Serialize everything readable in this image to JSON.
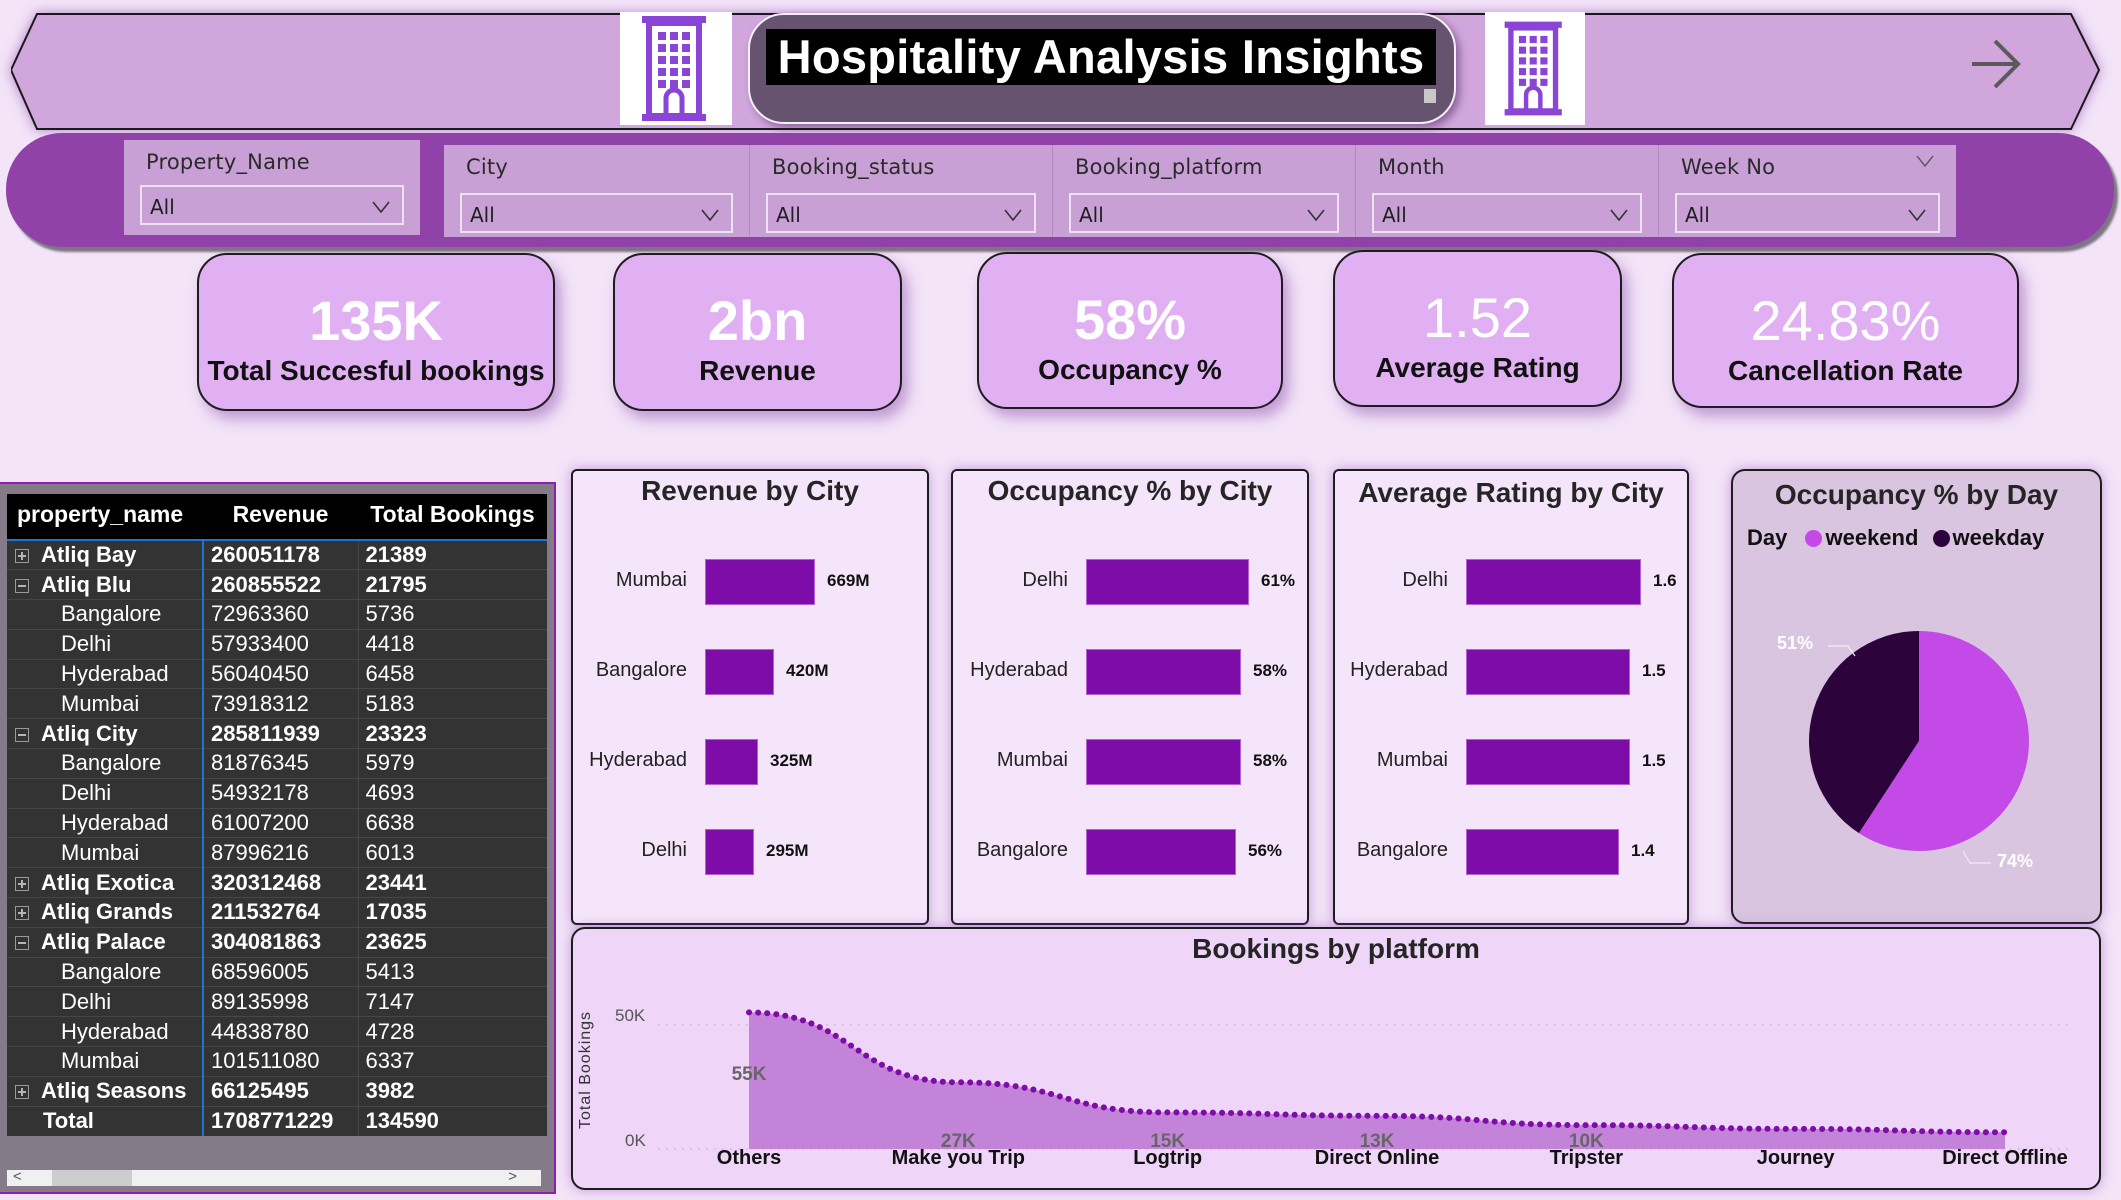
{
  "header": {
    "title": "Hospitality Analysis Insights",
    "left_icon": "hotel-building-icon",
    "right_icon": "hotel-building-icon",
    "nav_icon": "arrow-right-icon"
  },
  "slicers": [
    {
      "label": "Property_Name",
      "value": "All"
    },
    {
      "label": "City",
      "value": "All"
    },
    {
      "label": "Booking_status",
      "value": "All"
    },
    {
      "label": "Booking_platform",
      "value": "All"
    },
    {
      "label": "Month",
      "value": "All"
    },
    {
      "label": "Week No",
      "value": "All"
    }
  ],
  "kpis": [
    {
      "value": "135K",
      "label": "Total Succesful bookings"
    },
    {
      "value": "2bn",
      "label": "Revenue"
    },
    {
      "value": "58%",
      "label": "Occupancy %"
    },
    {
      "value": "1.52",
      "label": "Average Rating"
    },
    {
      "value": "24.83%",
      "label": "Cancellation Rate"
    }
  ],
  "matrix": {
    "columns": [
      "property_name",
      "Revenue",
      "Total Bookings"
    ],
    "rows": [
      {
        "name": "Atliq Bay",
        "revenue": "260051178",
        "bookings": "21389",
        "level": "parent",
        "state": "collapsed"
      },
      {
        "name": "Atliq Blu",
        "revenue": "260855522",
        "bookings": "21795",
        "level": "parent",
        "state": "expanded"
      },
      {
        "name": "Bangalore",
        "revenue": "72963360",
        "bookings": "5736",
        "level": "child"
      },
      {
        "name": "Delhi",
        "revenue": "57933400",
        "bookings": "4418",
        "level": "child"
      },
      {
        "name": "Hyderabad",
        "revenue": "56040450",
        "bookings": "6458",
        "level": "child"
      },
      {
        "name": "Mumbai",
        "revenue": "73918312",
        "bookings": "5183",
        "level": "child"
      },
      {
        "name": "Atliq City",
        "revenue": "285811939",
        "bookings": "23323",
        "level": "parent",
        "state": "expanded"
      },
      {
        "name": "Bangalore",
        "revenue": "81876345",
        "bookings": "5979",
        "level": "child"
      },
      {
        "name": "Delhi",
        "revenue": "54932178",
        "bookings": "4693",
        "level": "child"
      },
      {
        "name": "Hyderabad",
        "revenue": "61007200",
        "bookings": "6638",
        "level": "child"
      },
      {
        "name": "Mumbai",
        "revenue": "87996216",
        "bookings": "6013",
        "level": "child"
      },
      {
        "name": "Atliq Exotica",
        "revenue": "320312468",
        "bookings": "23441",
        "level": "parent",
        "state": "collapsed"
      },
      {
        "name": "Atliq Grands",
        "revenue": "211532764",
        "bookings": "17035",
        "level": "parent",
        "state": "collapsed"
      },
      {
        "name": "Atliq Palace",
        "revenue": "304081863",
        "bookings": "23625",
        "level": "parent",
        "state": "expanded"
      },
      {
        "name": "Bangalore",
        "revenue": "68596005",
        "bookings": "5413",
        "level": "child"
      },
      {
        "name": "Delhi",
        "revenue": "89135998",
        "bookings": "7147",
        "level": "child"
      },
      {
        "name": "Hyderabad",
        "revenue": "44838780",
        "bookings": "4728",
        "level": "child"
      },
      {
        "name": "Mumbai",
        "revenue": "101511080",
        "bookings": "6337",
        "level": "child"
      },
      {
        "name": "Atliq Seasons",
        "revenue": "66125495",
        "bookings": "3982",
        "level": "parent",
        "state": "collapsed"
      }
    ],
    "total": {
      "name": "Total",
      "revenue": "1708771229",
      "bookings": "134590"
    },
    "scroll_left": "<",
    "scroll_right": ">"
  },
  "colors": {
    "bar": "#7e0ca8",
    "weekend": "#c34ae6",
    "weekday": "#2d033b",
    "area_fill": "#c383d8",
    "area_line": "#7e0ca8",
    "background": "#f3e4f8",
    "slicer_bar": "#9042a8"
  },
  "chart_data": [
    {
      "type": "bar",
      "orientation": "horizontal",
      "title": "Revenue by City",
      "categories": [
        "Mumbai",
        "Bangalore",
        "Hyderabad",
        "Delhi"
      ],
      "values": [
        669,
        420,
        325,
        295
      ],
      "value_labels": [
        "669M",
        "420M",
        "325M",
        "295M"
      ],
      "unit": "M"
    },
    {
      "type": "bar",
      "orientation": "horizontal",
      "title": "Occupancy % by City",
      "categories": [
        "Delhi",
        "Hyderabad",
        "Mumbai",
        "Bangalore"
      ],
      "values": [
        61,
        58,
        58,
        56
      ],
      "value_labels": [
        "61%",
        "58%",
        "58%",
        "56%"
      ],
      "unit": "%"
    },
    {
      "type": "bar",
      "orientation": "horizontal",
      "title": "Average Rating by City",
      "categories": [
        "Delhi",
        "Hyderabad",
        "Mumbai",
        "Bangalore"
      ],
      "values": [
        1.6,
        1.5,
        1.5,
        1.4
      ],
      "value_labels": [
        "1.6",
        "1.5",
        "1.5",
        "1.4"
      ]
    },
    {
      "type": "pie",
      "title": "Occupancy % by Day",
      "legend_title": "Day",
      "categories": [
        "weekend",
        "weekday"
      ],
      "values": [
        74,
        51
      ],
      "value_labels": [
        "74%",
        "51%"
      ],
      "legend_position": "top"
    },
    {
      "type": "area",
      "title": "Bookings by platform",
      "xlabel": "",
      "ylabel": "Total Bookings",
      "categories": [
        "Others",
        "Make you Trip",
        "Logtrip",
        "Direct Online",
        "Tripster",
        "Journey",
        "Direct Offline"
      ],
      "values": [
        55066,
        26898,
        14756,
        13379,
        9630,
        8106,
        6755
      ],
      "value_labels": [
        "55K",
        "27K",
        "15K",
        "13K",
        "10K",
        "",
        ""
      ],
      "yticks": [
        "0K",
        "50K"
      ],
      "ylim": [
        0,
        60000
      ],
      "grid": true
    }
  ]
}
